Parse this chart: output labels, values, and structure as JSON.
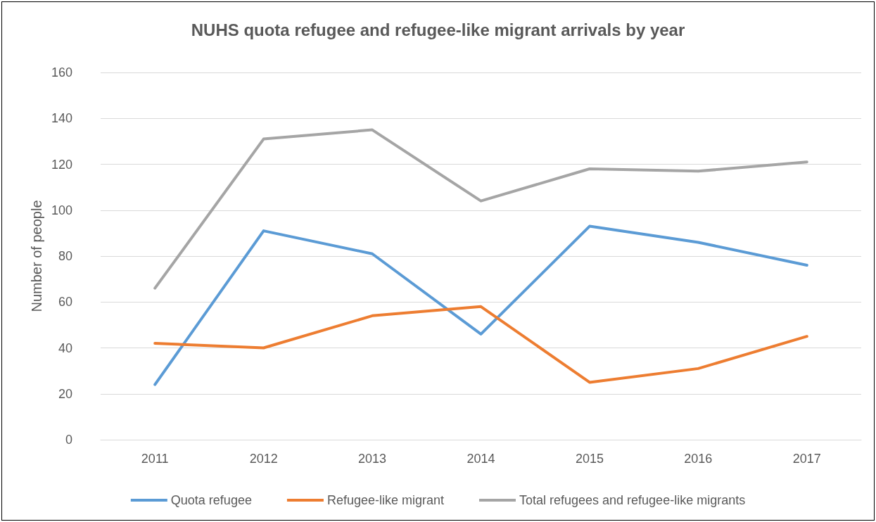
{
  "chart_data": {
    "type": "line",
    "title": "NUHS quota refugee and refugee-like migrant arrivals by year",
    "ylabel": "Number of people",
    "categories": [
      "2011",
      "2012",
      "2013",
      "2014",
      "2015",
      "2016",
      "2017"
    ],
    "series": [
      {
        "name": "Quota refugee",
        "color": "#5b9bd5",
        "values": [
          24,
          91,
          81,
          46,
          93,
          86,
          76
        ]
      },
      {
        "name": "Refugee-like migrant",
        "color": "#ed7d31",
        "values": [
          42,
          40,
          54,
          58,
          25,
          31,
          45
        ]
      },
      {
        "name": "Total refugees and refugee-like migrants",
        "color": "#a5a5a5",
        "values": [
          66,
          131,
          135,
          104,
          118,
          117,
          121
        ]
      }
    ],
    "ylim": [
      0,
      160
    ],
    "yticks": [
      0,
      20,
      40,
      60,
      80,
      100,
      120,
      140,
      160
    ],
    "grid": "y",
    "legend": "bottom",
    "marker": "none",
    "line_style": "solid"
  }
}
